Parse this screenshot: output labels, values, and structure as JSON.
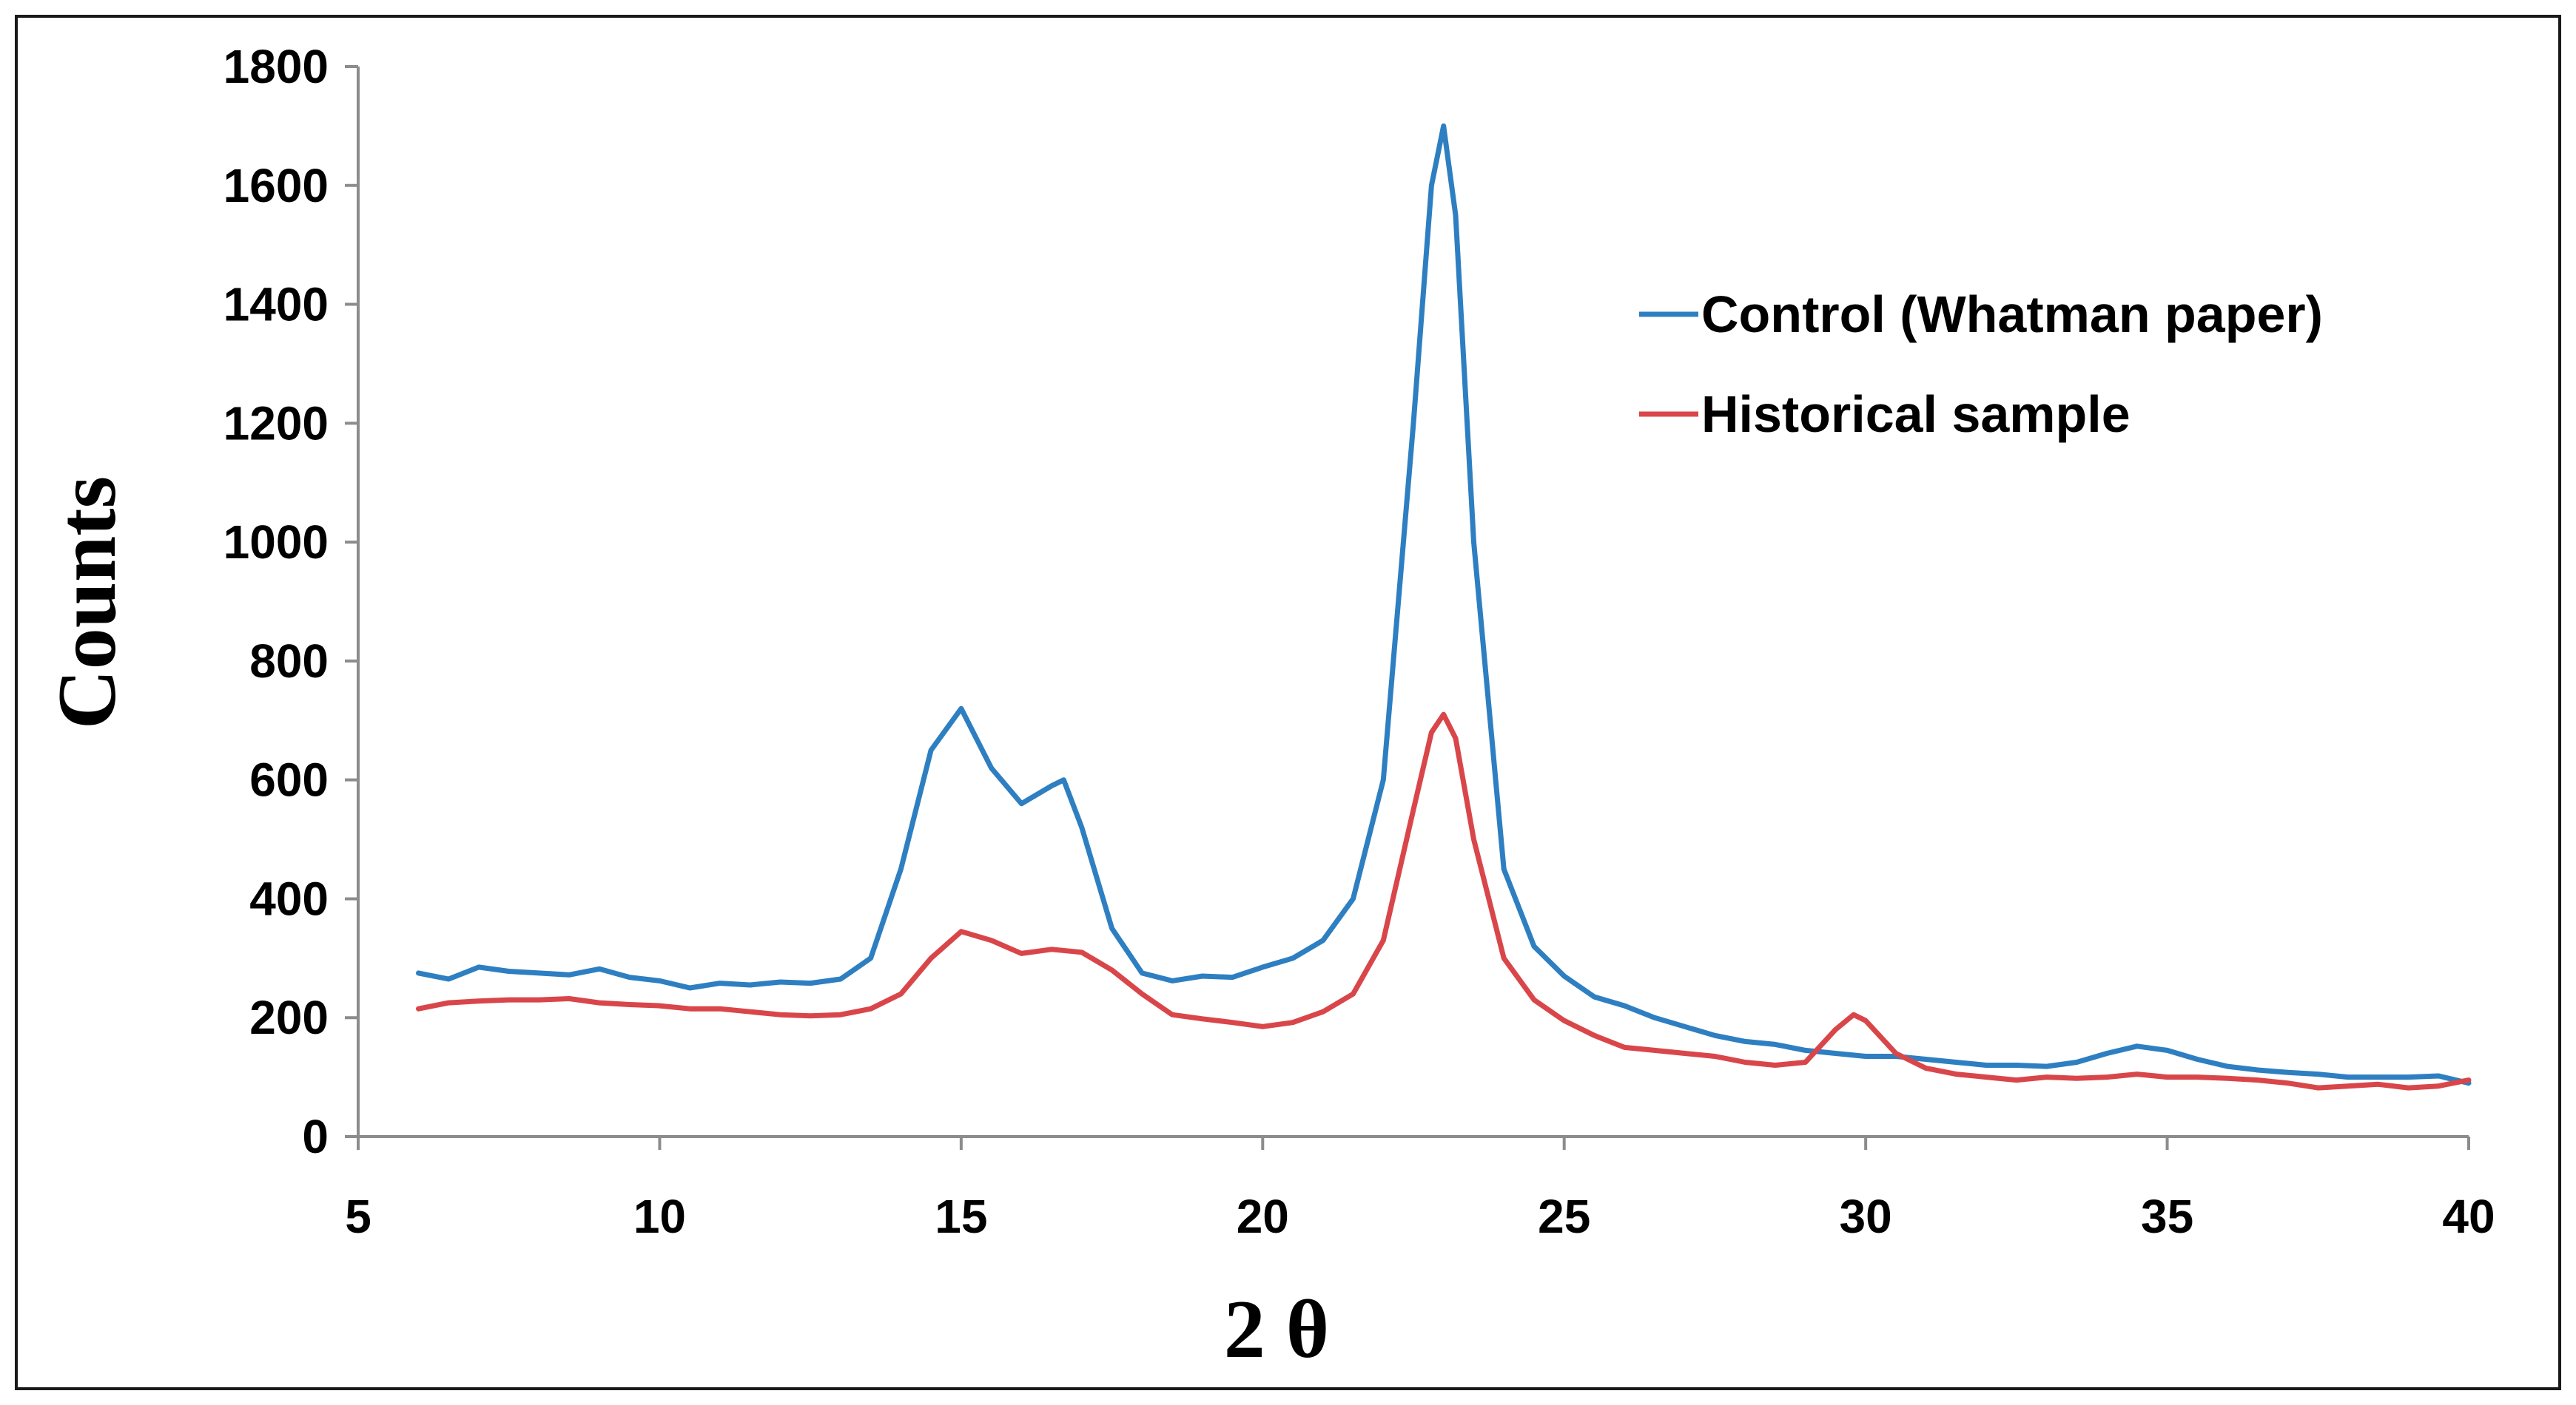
{
  "chart_data": {
    "type": "line",
    "title": "",
    "xlabel": "2 θ",
    "ylabel": "Counts",
    "xlim": [
      5,
      40
    ],
    "ylim": [
      0,
      1800
    ],
    "xticks": [
      5,
      10,
      15,
      20,
      25,
      30,
      35,
      40
    ],
    "yticks": [
      0,
      200,
      400,
      600,
      800,
      1000,
      1200,
      1400,
      1600,
      1800
    ],
    "grid": false,
    "legend_position": "top-right",
    "series": [
      {
        "name": "Control (Whatman paper)",
        "color": "#2e7fc1",
        "x": [
          6,
          6.5,
          7,
          7.5,
          8,
          8.5,
          9,
          9.5,
          10,
          10.5,
          11,
          11.5,
          12,
          12.5,
          13,
          13.5,
          14,
          14.5,
          15,
          15.5,
          16,
          16.5,
          16.7,
          17,
          17.5,
          18,
          18.5,
          19,
          19.5,
          20,
          20.5,
          21,
          21.5,
          22,
          22.5,
          22.8,
          23,
          23.2,
          23.5,
          24,
          24.5,
          25,
          25.5,
          26,
          26.5,
          27,
          27.5,
          28,
          28.5,
          29,
          29.5,
          30,
          30.5,
          31,
          31.5,
          32,
          32.5,
          33,
          33.5,
          34,
          34.5,
          35,
          35.5,
          36,
          36.5,
          37,
          37.5,
          38,
          38.5,
          39,
          39.5,
          40
        ],
        "values": [
          275,
          265,
          285,
          278,
          275,
          272,
          282,
          268,
          262,
          250,
          258,
          255,
          260,
          258,
          265,
          300,
          450,
          650,
          720,
          620,
          560,
          590,
          600,
          520,
          350,
          275,
          262,
          270,
          268,
          285,
          300,
          330,
          400,
          600,
          1200,
          1600,
          1700,
          1550,
          1000,
          450,
          320,
          270,
          235,
          220,
          200,
          185,
          170,
          160,
          155,
          145,
          140,
          135,
          135,
          130,
          125,
          120,
          120,
          118,
          125,
          140,
          152,
          145,
          130,
          118,
          112,
          108,
          105,
          100,
          100,
          100,
          102,
          90
        ]
      },
      {
        "name": "Historical sample",
        "color": "#d9464a",
        "x": [
          6,
          6.5,
          7,
          7.5,
          8,
          8.5,
          9,
          9.5,
          10,
          10.5,
          11,
          11.5,
          12,
          12.5,
          13,
          13.5,
          14,
          14.5,
          15,
          15.5,
          16,
          16.5,
          17,
          17.5,
          18,
          18.5,
          19,
          19.5,
          20,
          20.5,
          21,
          21.5,
          22,
          22.5,
          22.8,
          23,
          23.2,
          23.5,
          24,
          24.5,
          25,
          25.5,
          26,
          26.5,
          27,
          27.5,
          28,
          28.5,
          29,
          29.5,
          29.8,
          30,
          30.5,
          31,
          31.5,
          32,
          32.5,
          33,
          33.5,
          34,
          34.5,
          35,
          35.5,
          36,
          36.5,
          37,
          37.5,
          38,
          38.5,
          39,
          39.5,
          40
        ],
        "values": [
          215,
          225,
          228,
          230,
          230,
          232,
          225,
          222,
          220,
          215,
          215,
          210,
          205,
          203,
          205,
          215,
          240,
          300,
          345,
          330,
          308,
          315,
          310,
          280,
          240,
          205,
          198,
          192,
          185,
          192,
          210,
          240,
          330,
          550,
          680,
          710,
          670,
          500,
          300,
          230,
          195,
          170,
          150,
          145,
          140,
          135,
          125,
          120,
          125,
          180,
          205,
          195,
          140,
          115,
          105,
          100,
          95,
          100,
          98,
          100,
          105,
          100,
          100,
          98,
          95,
          90,
          82,
          85,
          88,
          82,
          85,
          95
        ]
      }
    ]
  }
}
